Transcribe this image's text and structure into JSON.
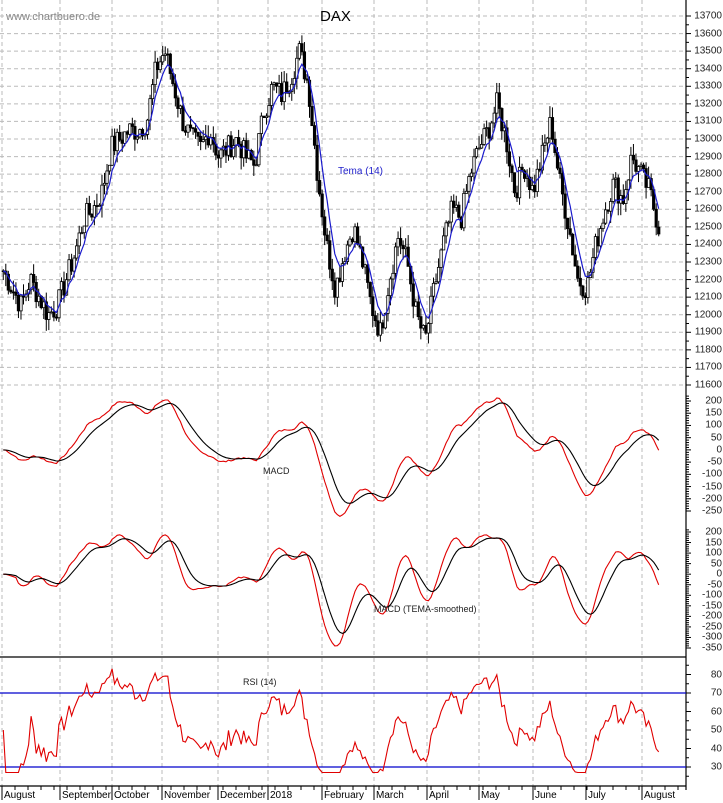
{
  "header": {
    "watermark": "www.chartbuero.de",
    "title": "DAX"
  },
  "labels": {
    "tema": "Tema (14)",
    "macd": "MACD",
    "macd_tema": "MACD (TEMA-smoothed)",
    "rsi": "RSI (14)"
  },
  "colors": {
    "candle": "#000000",
    "tema_line": "#1a1acc",
    "macd_line": "#e00000",
    "signal_line": "#000000",
    "rsi_line": "#e00000",
    "rsi_bands": "#0000cc",
    "grid": "#bbbbbb"
  },
  "chart_data": [
    {
      "type": "candlestick",
      "title": "DAX",
      "overlay": "Tema (14)",
      "ylim": [
        11600,
        13700
      ],
      "yticks": [
        11600,
        11700,
        11800,
        11900,
        12000,
        12100,
        12200,
        12300,
        12400,
        12500,
        12600,
        12700,
        12800,
        12900,
        13000,
        13100,
        13200,
        13300,
        13400,
        13500,
        13600,
        13700
      ],
      "x_labels": [
        "August",
        "September",
        "October",
        "November",
        "December",
        "2018",
        "February",
        "March",
        "April",
        "May",
        "June",
        "July",
        "August"
      ],
      "close_approx": [
        12250,
        12150,
        12050,
        12200,
        12100,
        12000,
        12050,
        12200,
        12350,
        12550,
        12600,
        12700,
        12950,
        13000,
        13050,
        13050,
        13100,
        13400,
        13500,
        13300,
        13100,
        13000,
        12950,
        13050,
        12900,
        12950,
        13000,
        12900,
        12850,
        13150,
        13300,
        13250,
        13350,
        13500,
        13300,
        12800,
        12400,
        12150,
        12350,
        12500,
        12300,
        12050,
        11900,
        12200,
        12450,
        12300,
        12000,
        11850,
        12150,
        12400,
        12600,
        12550,
        12800,
        12950,
        13050,
        13200,
        13000,
        12700,
        12850,
        12700,
        12900,
        13100,
        12750,
        12500,
        12200,
        12150,
        12400,
        12600,
        12750,
        12650,
        12900,
        12800,
        12700,
        12500
      ]
    },
    {
      "type": "line",
      "title": "MACD",
      "ylim": [
        -250,
        200
      ],
      "yticks": [
        200,
        150,
        100,
        50,
        0,
        -50,
        -100,
        -150,
        -200,
        -250
      ],
      "series": [
        {
          "name": "MACD",
          "color": "#e00000"
        },
        {
          "name": "Signal",
          "color": "#000000"
        }
      ]
    },
    {
      "type": "line",
      "title": "MACD (TEMA-smoothed)",
      "ylim": [
        -350,
        200
      ],
      "yticks": [
        200,
        150,
        100,
        50,
        0,
        -50,
        -100,
        -150,
        -200,
        -250,
        -300,
        -350
      ],
      "series": [
        {
          "name": "MACD (TEMA)",
          "color": "#e00000"
        },
        {
          "name": "Signal",
          "color": "#000000"
        }
      ]
    },
    {
      "type": "line",
      "title": "RSI (14)",
      "ylim": [
        25,
        90
      ],
      "yticks": [
        80,
        70,
        60,
        50,
        40,
        30
      ],
      "reference_lines": [
        70,
        30
      ],
      "series": [
        {
          "name": "RSI (14)",
          "color": "#e00000"
        }
      ]
    }
  ],
  "axis": {
    "price_ticks": [
      "13700",
      "13600",
      "13500",
      "13400",
      "13300",
      "13200",
      "13100",
      "13000",
      "12900",
      "12800",
      "12700",
      "12600",
      "12500",
      "12400",
      "12300",
      "12200",
      "12100",
      "12000",
      "11900",
      "11800",
      "11700",
      "11600"
    ],
    "macd_ticks": [
      "200",
      "150",
      "100",
      "50",
      "0",
      "-50",
      "-100",
      "-150",
      "-200",
      "-250"
    ],
    "macd2_ticks": [
      "200",
      "150",
      "100",
      "50",
      "0",
      "-50",
      "-100",
      "-150",
      "-200",
      "-250",
      "-300",
      "-350"
    ],
    "rsi_ticks": [
      "80",
      "70",
      "60",
      "50",
      "40",
      "30"
    ],
    "months": [
      "August",
      "September",
      "October",
      "November",
      "December",
      "2018",
      "February",
      "March",
      "April",
      "May",
      "June",
      "July",
      "August"
    ]
  }
}
